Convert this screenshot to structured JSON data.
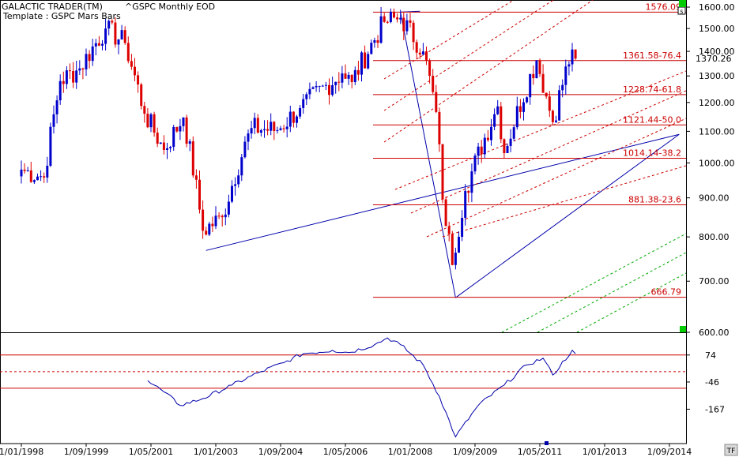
{
  "header": {
    "brand": "GALACTIC TRADER(TM)",
    "symbol": "^GSPC Monthly EOD",
    "template": "Template : GSPC Mars Bars"
  },
  "colors": {
    "up": "#0000cc",
    "down": "#dd0000",
    "fib": "#cc0000",
    "trend": "#0000aa",
    "green": "#00aa00",
    "osc": "#0000aa",
    "marker": "#00cc00"
  },
  "icons": {
    "corner_top": "s-box-icon",
    "corner_bottom": "tf-icon",
    "price_marker": "green-square-icon"
  },
  "corner_bottom_label": "TF",
  "chart_data": [
    {
      "type": "candlestick",
      "title": "^GSPC Monthly EOD",
      "ylim": [
        600,
        1600
      ],
      "yscale": "log",
      "y_ticks": [
        "1600.00",
        "1500.00",
        "1400.00",
        "1300.00",
        "1200.00",
        "1100.00",
        "1000.00",
        "900.00",
        "800.00",
        "700.00",
        "600.00"
      ],
      "last_price": "1370.26",
      "x_ticks": [
        "1/01/1998",
        "1/09/1999",
        "1/05/2001",
        "1/01/2003",
        "1/09/2004",
        "1/05/2006",
        "1/01/2008",
        "1/09/2009",
        "1/05/2011",
        "1/01/2013",
        "1/09/2014"
      ],
      "fib_levels": [
        {
          "value": 1576.09,
          "label": "1576.09"
        },
        {
          "value": 1361.58,
          "label": "1361.58-76.4"
        },
        {
          "value": 1228.74,
          "label": "1228.74-61.8"
        },
        {
          "value": 1121.44,
          "label": "1121.44-50.0"
        },
        {
          "value": 1014.14,
          "label": "1014.14-38.2"
        },
        {
          "value": 881.38,
          "label": "881.38-23.6"
        },
        {
          "value": 666.79,
          "label": "666.79"
        }
      ],
      "trend_lines": [
        {
          "from": [
            "2002-10",
            768
          ],
          "to": [
            "2014-12",
            1090
          ]
        },
        {
          "from": [
            "2009-03",
            666
          ],
          "to": [
            "2014-12",
            1090
          ]
        },
        {
          "from": [
            "2007-10",
            1576
          ],
          "to": [
            "2009-03",
            666
          ]
        },
        {
          "from": [
            "2007-10",
            1576
          ],
          "to": [
            "2008-04",
            1580
          ]
        }
      ],
      "anchors": [
        {
          "date": "1998-01",
          "close": 980
        },
        {
          "date": "1998-08",
          "close": 957
        },
        {
          "date": "1999-01",
          "close": 1280
        },
        {
          "date": "1999-07",
          "close": 1330
        },
        {
          "date": "2000-03",
          "close": 1500
        },
        {
          "date": "2000-09",
          "close": 1436
        },
        {
          "date": "2001-03",
          "close": 1160
        },
        {
          "date": "2001-09",
          "close": 1040
        },
        {
          "date": "2002-03",
          "close": 1147
        },
        {
          "date": "2002-09",
          "close": 815
        },
        {
          "date": "2003-03",
          "close": 849
        },
        {
          "date": "2003-12",
          "close": 1111
        },
        {
          "date": "2004-08",
          "close": 1104
        },
        {
          "date": "2005-03",
          "close": 1180
        },
        {
          "date": "2006-04",
          "close": 1310
        },
        {
          "date": "2006-07",
          "close": 1276
        },
        {
          "date": "2007-05",
          "close": 1530
        },
        {
          "date": "2007-10",
          "close": 1549
        },
        {
          "date": "2008-05",
          "close": 1400
        },
        {
          "date": "2008-09",
          "close": 1166
        },
        {
          "date": "2008-11",
          "close": 896
        },
        {
          "date": "2009-02",
          "close": 735
        },
        {
          "date": "2009-06",
          "close": 919
        },
        {
          "date": "2010-04",
          "close": 1186
        },
        {
          "date": "2010-06",
          "close": 1030
        },
        {
          "date": "2011-04",
          "close": 1363
        },
        {
          "date": "2011-09",
          "close": 1131
        },
        {
          "date": "2012-03",
          "close": 1408
        },
        {
          "date": "2012-04",
          "close": 1370
        }
      ]
    },
    {
      "type": "line",
      "name": "oscillator",
      "y_ticks": [
        "74",
        "-46",
        "-167"
      ],
      "levels": [
        74,
        0,
        -74
      ],
      "series": [
        {
          "date": "2001-04",
          "v": -40
        },
        {
          "date": "2001-09",
          "v": -90
        },
        {
          "date": "2002-02",
          "v": -150
        },
        {
          "date": "2002-09",
          "v": -120
        },
        {
          "date": "2003-06",
          "v": -60
        },
        {
          "date": "2004-03",
          "v": 0
        },
        {
          "date": "2004-10",
          "v": 40
        },
        {
          "date": "2005-04",
          "v": 80
        },
        {
          "date": "2006-01",
          "v": 95
        },
        {
          "date": "2006-06",
          "v": 85
        },
        {
          "date": "2007-02",
          "v": 120
        },
        {
          "date": "2007-06",
          "v": 150
        },
        {
          "date": "2007-10",
          "v": 120
        },
        {
          "date": "2008-05",
          "v": 30
        },
        {
          "date": "2008-10",
          "v": -110
        },
        {
          "date": "2009-03",
          "v": -290
        },
        {
          "date": "2009-10",
          "v": -150
        },
        {
          "date": "2010-06",
          "v": -60
        },
        {
          "date": "2011-01",
          "v": 30
        },
        {
          "date": "2011-06",
          "v": 60
        },
        {
          "date": "2011-09",
          "v": -15
        },
        {
          "date": "2012-03",
          "v": 95
        },
        {
          "date": "2012-04",
          "v": 80
        }
      ]
    }
  ]
}
